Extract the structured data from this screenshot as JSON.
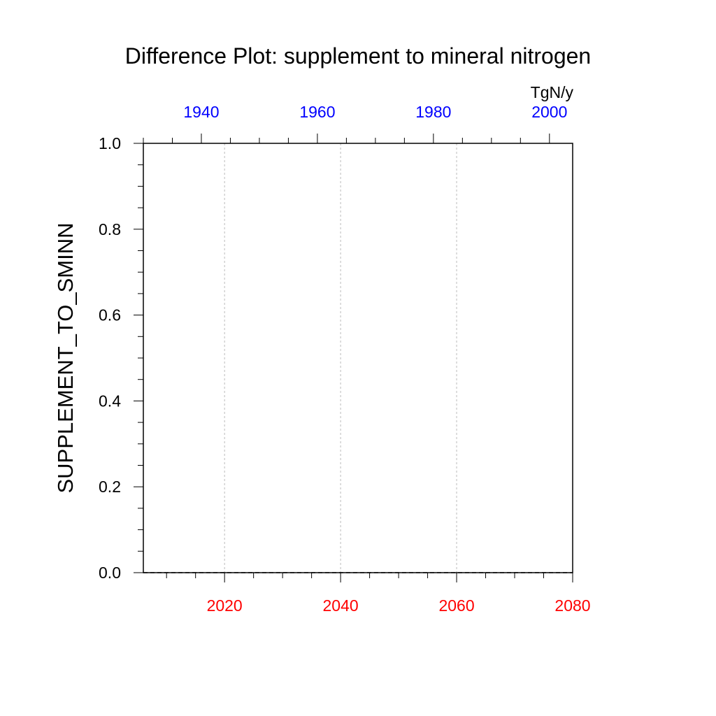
{
  "chart_data": {
    "type": "line",
    "title": "Difference Plot: supplement to mineral nitrogen",
    "ylabel": "SUPPLEMENT_TO_SMINN",
    "units": "TgN/y",
    "ylim": [
      0.0,
      1.0
    ],
    "y_ticks": [
      0.0,
      0.2,
      0.4,
      0.6,
      0.8,
      1.0
    ],
    "y_tick_labels": [
      "0.0",
      "0.2",
      "0.4",
      "0.6",
      "0.8",
      "1.0"
    ],
    "y_minor_step": 0.05,
    "bottom_axis": {
      "range": [
        2006,
        2080
      ],
      "ticks": [
        2020,
        2040,
        2060,
        2080
      ],
      "labels": [
        "2020",
        "2040",
        "2060",
        "2080"
      ],
      "minor_step": 5,
      "color": "#ff0000"
    },
    "top_axis": {
      "range": [
        1930,
        2004
      ],
      "ticks": [
        1940,
        1960,
        1980,
        2000
      ],
      "labels": [
        "1940",
        "1960",
        "1980",
        "2000"
      ],
      "minor_step": 5,
      "color": "#0000ff"
    },
    "grid": "vertical-dotted",
    "series": [
      {
        "name": "difference",
        "x": [
          2006,
          2080
        ],
        "values": [
          0.0,
          0.0
        ],
        "color": "#000000",
        "dash": "dashed"
      }
    ]
  }
}
